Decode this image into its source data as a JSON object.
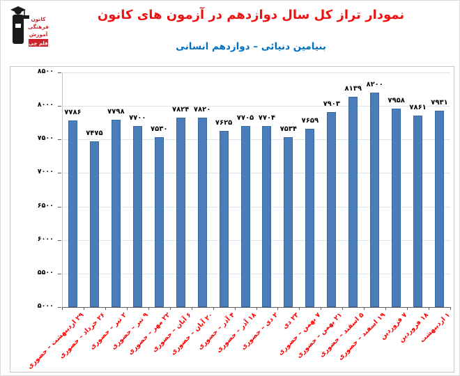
{
  "header": {
    "title": "نمودار تراز کل سال دوازدهم در آزمون های کانون",
    "subtitle": "بنیامین دنیائی – دوازدهم انسانی",
    "logo": {
      "org_line1": "کانون",
      "org_line2": "فرهنگی",
      "org_line3": "آموزش",
      "brand": "قلم چی"
    }
  },
  "chart_data": {
    "type": "bar",
    "title": "نمودار تراز کل سال دوازدهم در آزمون های کانون",
    "subtitle": "بنیامین دنیائی – دوازدهم انسانی",
    "categories": [
      "۲۹ اردیبهشت – حضوری",
      "۲۶ خرداد – حضوری",
      "۲ تیر – حضوری",
      "۹ تیر – حضوری",
      "۲۲ مهر – حضوری",
      "۶ آبان – حضوری",
      "۲۰ آبان – حضوری",
      "۴ آذر – حضوری",
      "۱۸ آذر – حضوری",
      "۲ دی – حضوری",
      "۲۳ دی",
      "۷ بهمن – حضوری",
      "۲۱ بهمن – حضوری",
      "۵ اسفند – حضوری",
      "۱۹ اسفند – حضوری",
      "۷ فروردین",
      "۱۸ فروردین",
      "۱ اردیبهشت"
    ],
    "values": [
      7786,
      7475,
      7798,
      7700,
      7530,
      7824,
      7820,
      7625,
      7705,
      7704,
      7534,
      7659,
      7903,
      8139,
      8200,
      7958,
      7861,
      7931
    ],
    "xlabel": "",
    "ylabel": "",
    "ylim": [
      5000,
      8500
    ],
    "yticks": [
      5000,
      5500,
      6000,
      6500,
      7000,
      7500,
      8000,
      8500
    ],
    "grid": true,
    "legend": false,
    "digit_locale": "fa",
    "colors": {
      "bar_fill": "#4a7dba",
      "bar_border": "#39689f",
      "gridline": "#dce4ef",
      "y_axis_line": "#b7c6db",
      "x_axis_line": "#5a5a5a",
      "category_label": "#ff0000",
      "value_label": "#000000",
      "title": "#ee1111",
      "subtitle": "#0070c0"
    }
  }
}
